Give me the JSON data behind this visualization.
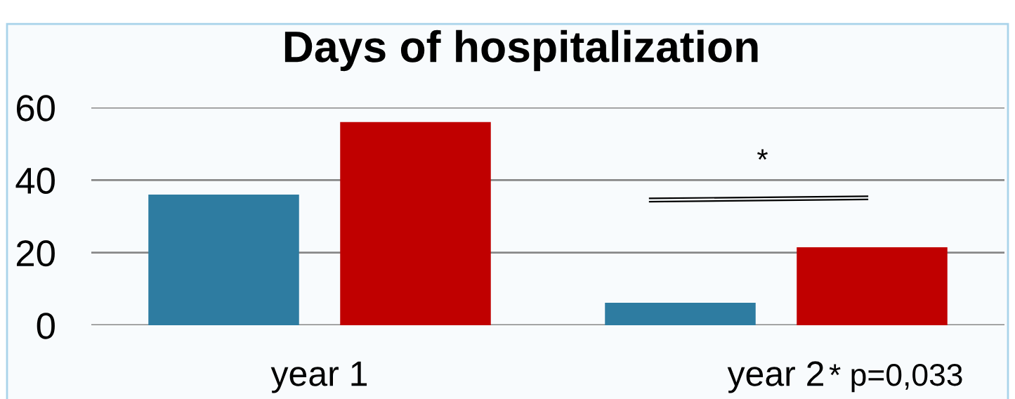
{
  "chart_data": {
    "type": "bar",
    "title": "Days of hospitalization",
    "categories": [
      "year 1",
      "year 2"
    ],
    "series": [
      {
        "color": "#2e7ca1",
        "values": [
          36,
          6.2
        ]
      },
      {
        "color": "#c00000",
        "values": [
          56,
          21.5
        ]
      }
    ],
    "ylim": [
      0,
      60
    ],
    "yticks": [
      0,
      20,
      40,
      60
    ],
    "grid": "y",
    "annotations": [
      "*",
      "* p=0,033"
    ]
  }
}
